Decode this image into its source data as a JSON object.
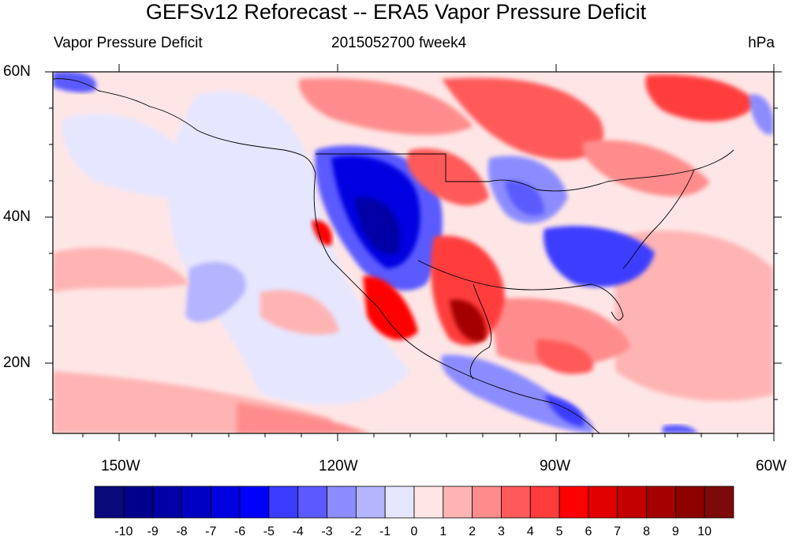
{
  "title": "GEFSv12 Reforecast -- ERA5 Vapor Pressure Deficit",
  "subtitle_left": "Vapor Pressure Deficit",
  "subtitle_center": "2015052700 fweek4",
  "subtitle_right": "hPa",
  "lat_labels": [
    "60N",
    "40N",
    "20N"
  ],
  "lon_labels": [
    "150W",
    "120W",
    "90W",
    "60W"
  ],
  "colorbar": {
    "labels": [
      "-10",
      "-9",
      "-8",
      "-7",
      "-6",
      "-5",
      "-4",
      "-3",
      "-2",
      "-1",
      "0",
      "1",
      "2",
      "3",
      "4",
      "5",
      "6",
      "7",
      "8",
      "9",
      "10"
    ],
    "colors": [
      "#0a0a7d",
      "#00008c",
      "#0000a5",
      "#0000c3",
      "#0000e1",
      "#0000ff",
      "#3c3cff",
      "#5a5aff",
      "#8c8cff",
      "#b4b4ff",
      "#e6e6ff",
      "#ffe6e6",
      "#ffb4b4",
      "#ff8c8c",
      "#ff5a5a",
      "#ff3c3c",
      "#ff0000",
      "#e10000",
      "#c30000",
      "#a50000",
      "#8c0000",
      "#7d0a0a"
    ]
  },
  "map": {
    "extent": "160W-60W, 10N-60N",
    "background_color": "#ffe6e6"
  }
}
